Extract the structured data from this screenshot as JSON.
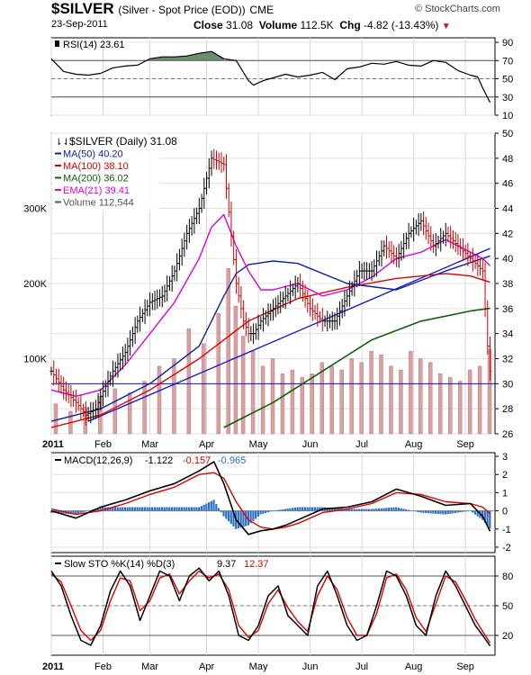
{
  "header": {
    "symbol": "$SILVER",
    "description": "(Silver - Spot Price (EOD))",
    "exchange": "CME",
    "date": "23-Sep-2011",
    "close_label": "Close",
    "close_value": "31.08",
    "volume_label": "Volume",
    "volume_value": "112.5K",
    "chg_label": "Chg",
    "chg_value": "-4.82 (-13.43%)",
    "chg_arrow": "▼",
    "watermark": "© StockCharts.com"
  },
  "colors": {
    "up": "#000000",
    "down": "#d00000",
    "ma50": "#1020a0",
    "ma100": "#e00000",
    "ma200": "#106010",
    "ema21": "#e000e0",
    "volume": "#d8a0a0",
    "rsi_fill": "#6a8f6a",
    "hist": "#3070c0",
    "trend": "#1010e0"
  },
  "chart_data": [
    {
      "id": "rsi",
      "type": "line",
      "legend": "RSI(14) 23.61",
      "ylim": [
        10,
        95
      ],
      "yticks": [
        10,
        30,
        50,
        70,
        90
      ],
      "overbought": 70,
      "oversold": 30,
      "centerline": 50,
      "x": [
        0,
        5,
        10,
        15,
        20,
        25,
        30,
        35,
        40,
        45,
        50,
        55,
        60,
        65,
        70,
        75,
        80,
        82,
        86,
        90,
        95,
        100,
        105,
        110,
        115,
        120,
        125,
        130,
        135,
        140,
        145,
        150,
        155,
        160,
        165,
        170,
        173,
        175,
        178
      ],
      "y": [
        72,
        58,
        55,
        54,
        56,
        62,
        64,
        65,
        72,
        74,
        74,
        75,
        78,
        80,
        72,
        70,
        48,
        43,
        48,
        51,
        55,
        52,
        54,
        57,
        49,
        61,
        63,
        67,
        66,
        69,
        65,
        64,
        70,
        68,
        59,
        54,
        52,
        40,
        24
      ]
    },
    {
      "id": "price",
      "type": "ohlc",
      "legend": {
        "title": "$SILVER (Daily) 31.08",
        "ma50": "MA(50) 40.20",
        "ma100": "MA(100) 38.10",
        "ma200": "MA(200) 36.02",
        "ema21": "EMA(21) 39.41",
        "volume": "Volume 112,544"
      },
      "ylim": [
        26,
        50
      ],
      "yticks": [
        26,
        28,
        30,
        32,
        34,
        36,
        38,
        40,
        42,
        44,
        46,
        48,
        50
      ],
      "volume_labels": [
        "300K",
        "200K",
        "100K"
      ],
      "volume_ticks": [
        300000,
        200000,
        100000
      ],
      "horizontal_line": 30,
      "price_x": [
        0,
        5,
        10,
        14,
        18,
        20,
        25,
        30,
        35,
        40,
        45,
        50,
        55,
        60,
        65,
        70,
        75,
        78,
        80,
        82,
        85,
        90,
        95,
        100,
        105,
        110,
        115,
        120,
        125,
        130,
        135,
        140,
        145,
        150,
        155,
        160,
        165,
        170,
        175,
        177,
        178
      ],
      "price_y": [
        31,
        29.5,
        28.5,
        27.5,
        28,
        29,
        31,
        32.5,
        35,
        36.5,
        37,
        39,
        42,
        44,
        48,
        47.5,
        38,
        35,
        34,
        34,
        35,
        36,
        37,
        38,
        36,
        35,
        35,
        37,
        39,
        39,
        41,
        40,
        42,
        43,
        41,
        42,
        41,
        40,
        39,
        33,
        31
      ],
      "volume_x": [
        2,
        8,
        14,
        20,
        26,
        32,
        38,
        44,
        50,
        56,
        62,
        68,
        72,
        75,
        78,
        82,
        86,
        90,
        94,
        98,
        102,
        106,
        110,
        114,
        118,
        122,
        126,
        130,
        134,
        138,
        142,
        146,
        150,
        154,
        158,
        162,
        166,
        170,
        174,
        178
      ],
      "volume_y": [
        40000,
        30000,
        35000,
        50000,
        60000,
        55000,
        70000,
        90000,
        100000,
        140000,
        120000,
        160000,
        220000,
        170000,
        130000,
        110000,
        90000,
        100000,
        80000,
        85000,
        75000,
        80000,
        95000,
        90000,
        85000,
        100000,
        95000,
        110000,
        105000,
        90000,
        85000,
        110000,
        100000,
        95000,
        80000,
        75000,
        70000,
        85000,
        90000,
        112544
      ],
      "ma50_x": [
        0,
        20,
        40,
        60,
        70,
        75,
        80,
        90,
        100,
        120,
        140,
        160,
        178
      ],
      "ma50_y": [
        27,
        28,
        30,
        33,
        37,
        38.8,
        39.5,
        39.8,
        39.6,
        38,
        37.5,
        39,
        40.2
      ],
      "ma100_x": [
        0,
        20,
        40,
        60,
        80,
        100,
        120,
        140,
        160,
        170,
        178
      ],
      "ma100_y": [
        26.5,
        27.5,
        29.5,
        32,
        35,
        36.8,
        37.7,
        38.4,
        38.8,
        38.6,
        38.1
      ],
      "ma200_x": [
        70,
        90,
        110,
        130,
        150,
        170,
        178
      ],
      "ma200_y": [
        26.5,
        28.5,
        31,
        33.5,
        35,
        35.8,
        36.02
      ],
      "ema21_x": [
        0,
        10,
        20,
        30,
        40,
        50,
        60,
        65,
        70,
        75,
        80,
        85,
        90,
        100,
        110,
        120,
        130,
        140,
        150,
        160,
        170,
        175,
        178
      ],
      "ema21_y": [
        29.5,
        29,
        29.5,
        31.5,
        34,
        36.5,
        40,
        42.5,
        43.5,
        41,
        39,
        37.5,
        37.5,
        38,
        37,
        37.5,
        38.5,
        40,
        40.5,
        41.5,
        40.5,
        40,
        39.41
      ],
      "trendline_x": [
        15,
        178
      ],
      "trendline_y": [
        27,
        40.8
      ]
    },
    {
      "id": "macd",
      "type": "line",
      "legend": {
        "label": "MACD(12,26,9)",
        "macd": "-1.122",
        "signal": "-0.157",
        "hist": "-0.965"
      },
      "ylim": [
        -2.3,
        3.2
      ],
      "yticks": [
        -2,
        -1,
        0,
        1,
        2,
        3
      ],
      "macd_x": [
        0,
        10,
        20,
        30,
        40,
        50,
        60,
        66,
        70,
        75,
        80,
        85,
        90,
        95,
        100,
        110,
        120,
        130,
        140,
        150,
        160,
        170,
        175,
        178
      ],
      "macd_y": [
        0,
        -0.4,
        0.2,
        0.6,
        1.1,
        1.5,
        2.2,
        2.7,
        1.5,
        -0.5,
        -1.3,
        -1.1,
        -1,
        -0.8,
        -0.5,
        0.1,
        0.2,
        0.5,
        1.2,
        0.8,
        0.3,
        0.4,
        -0.3,
        -1.122
      ],
      "signal_x": [
        0,
        10,
        20,
        30,
        40,
        50,
        60,
        66,
        70,
        75,
        80,
        85,
        90,
        95,
        100,
        110,
        120,
        130,
        140,
        150,
        160,
        170,
        175,
        178
      ],
      "signal_y": [
        0.1,
        -0.2,
        0,
        0.4,
        0.9,
        1.3,
        2,
        2.1,
        1.8,
        0.5,
        -0.5,
        -0.9,
        -1,
        -0.9,
        -0.7,
        -0.1,
        0.1,
        0.4,
        1,
        0.9,
        0.5,
        0.4,
        0.2,
        -0.157
      ],
      "hist_x": [
        0,
        10,
        20,
        30,
        40,
        50,
        60,
        66,
        70,
        75,
        80,
        85,
        90,
        95,
        100,
        110,
        120,
        130,
        140,
        150,
        160,
        170,
        175,
        178
      ],
      "hist_y": [
        -0.1,
        -0.2,
        0.2,
        0.2,
        0.2,
        0.2,
        0.2,
        0.6,
        -0.3,
        -1,
        -0.8,
        -0.2,
        0,
        0.1,
        0.2,
        0.2,
        0.1,
        0.1,
        0.2,
        -0.1,
        -0.2,
        0,
        -0.5,
        -0.965
      ]
    },
    {
      "id": "sto",
      "type": "line",
      "legend": {
        "label": "Slow STO %K(14) %D(3)",
        "k": "9.37",
        "d": "12.37"
      },
      "ylim": [
        0,
        100
      ],
      "yticks": [
        20,
        50,
        80
      ],
      "ytick_labels": [
        "20",
        "50",
        "80"
      ],
      "k_x": [
        0,
        4,
        8,
        12,
        16,
        20,
        24,
        28,
        32,
        36,
        40,
        44,
        48,
        52,
        56,
        60,
        64,
        68,
        72,
        76,
        80,
        84,
        88,
        92,
        96,
        100,
        104,
        108,
        112,
        116,
        120,
        124,
        128,
        132,
        136,
        140,
        144,
        148,
        152,
        156,
        160,
        164,
        168,
        172,
        175,
        178
      ],
      "k_y": [
        85,
        70,
        40,
        15,
        10,
        30,
        65,
        85,
        70,
        35,
        60,
        85,
        80,
        55,
        80,
        88,
        75,
        85,
        60,
        20,
        15,
        30,
        60,
        70,
        40,
        30,
        20,
        70,
        85,
        60,
        30,
        15,
        20,
        50,
        85,
        80,
        60,
        30,
        20,
        60,
        85,
        70,
        50,
        30,
        20,
        9.37
      ],
      "d_x": [
        0,
        4,
        8,
        12,
        16,
        20,
        24,
        28,
        32,
        36,
        40,
        44,
        48,
        52,
        56,
        60,
        64,
        68,
        72,
        76,
        80,
        84,
        88,
        92,
        96,
        100,
        104,
        108,
        112,
        116,
        120,
        124,
        128,
        132,
        136,
        140,
        144,
        148,
        152,
        156,
        160,
        164,
        168,
        172,
        175,
        178
      ],
      "d_y": [
        82,
        74,
        50,
        25,
        15,
        25,
        55,
        78,
        75,
        45,
        55,
        78,
        82,
        62,
        75,
        85,
        78,
        82,
        66,
        30,
        18,
        25,
        52,
        66,
        48,
        34,
        24,
        60,
        80,
        66,
        38,
        20,
        20,
        42,
        78,
        82,
        66,
        38,
        24,
        52,
        80,
        74,
        56,
        36,
        24,
        12.37
      ]
    }
  ],
  "x_axis": {
    "index_max": 180,
    "months": [
      {
        "label": "2011",
        "index": 0
      },
      {
        "label": "Feb",
        "index": 21
      },
      {
        "label": "Mar",
        "index": 40
      },
      {
        "label": "Apr",
        "index": 63
      },
      {
        "label": "May",
        "index": 84
      },
      {
        "label": "Jun",
        "index": 105
      },
      {
        "label": "Jul",
        "index": 126
      },
      {
        "label": "Aug",
        "index": 147
      },
      {
        "label": "Sep",
        "index": 168
      }
    ]
  }
}
